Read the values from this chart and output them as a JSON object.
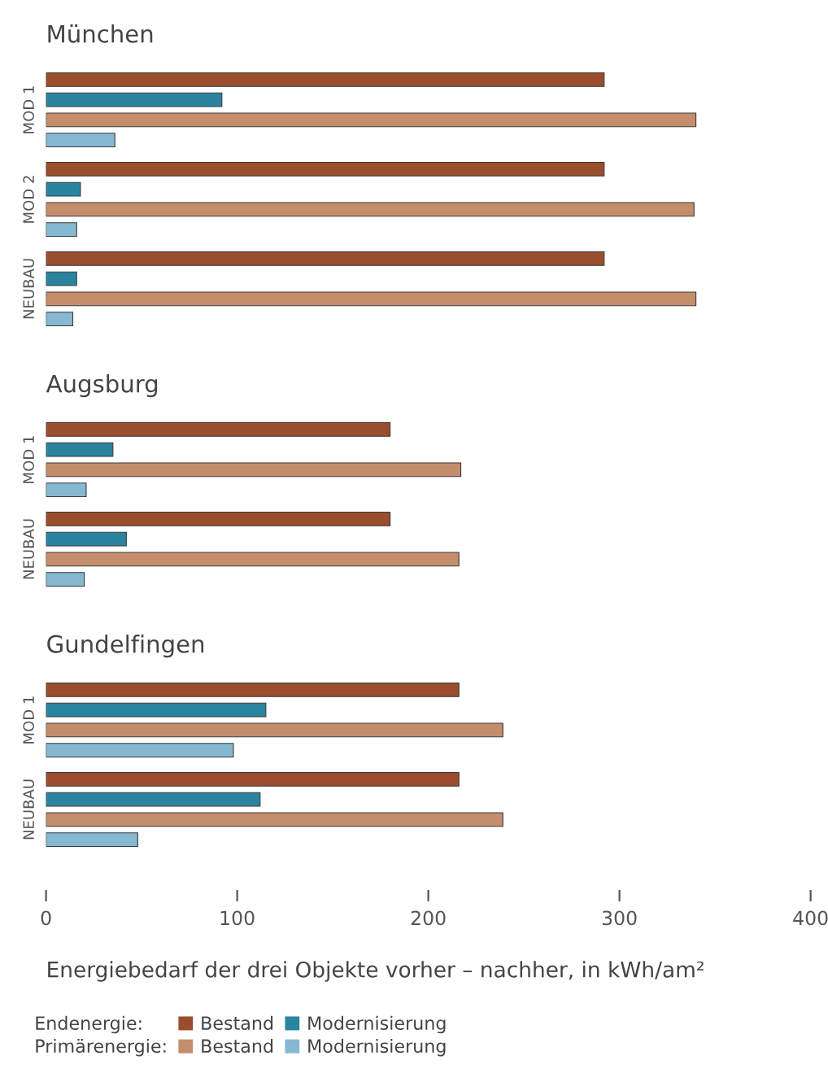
{
  "chart_data": [
    {
      "type": "bar",
      "orientation": "horizontal",
      "title": "München",
      "categories": [
        "MOD 1",
        "MOD 2",
        "NEUBAU"
      ],
      "xlim": [
        0,
        400
      ],
      "xticks": [
        0,
        100,
        200,
        300,
        400
      ],
      "tick_labels": "y",
      "grid": false,
      "legend": false,
      "series": [
        {
          "color": "#9a4e2e",
          "values": [
            292,
            292,
            292
          ]
        },
        {
          "color": "#2a84a0",
          "values": [
            92,
            18,
            16
          ]
        },
        {
          "color": "#c48e6c",
          "values": [
            340,
            339,
            340
          ]
        },
        {
          "color": "#86b8d2",
          "values": [
            36,
            16,
            14
          ]
        }
      ]
    },
    {
      "type": "bar",
      "orientation": "horizontal",
      "title": "Augsburg",
      "categories": [
        "MOD 1",
        "NEUBAU"
      ],
      "xlim": [
        0,
        400
      ],
      "xticks": [
        0,
        100,
        200,
        300,
        400
      ],
      "tick_labels": "y",
      "grid": false,
      "legend": false,
      "series": [
        {
          "color": "#9a4e2e",
          "values": [
            180,
            180
          ]
        },
        {
          "color": "#2a84a0",
          "values": [
            35,
            42
          ]
        },
        {
          "color": "#c48e6c",
          "values": [
            217,
            216
          ]
        },
        {
          "color": "#86b8d2",
          "values": [
            21,
            20
          ]
        }
      ]
    },
    {
      "type": "bar",
      "orientation": "horizontal",
      "title": "Gundelfingen",
      "categories": [
        "MOD 1",
        "NEUBAU"
      ],
      "xlim": [
        0,
        400
      ],
      "xticks": [
        0,
        100,
        200,
        300,
        400
      ],
      "grid": false,
      "legend": "bottom",
      "annotations": [
        "Energiebedarf der drei Objekte vorher – nachher, in kWh/am²",
        "Endenergie:",
        "Primärenergie:"
      ],
      "series": [
        {
          "name": "Bestand",
          "color": "#9a4e2e",
          "values": [
            216,
            216
          ]
        },
        {
          "name": "Modernisierung",
          "color": "#2a84a0",
          "values": [
            115,
            112
          ]
        },
        {
          "name": "Bestand",
          "color": "#c48e6c",
          "values": [
            239,
            239
          ]
        },
        {
          "name": "Modernisierung",
          "color": "#86b8d2",
          "values": [
            98,
            48
          ]
        }
      ]
    }
  ]
}
